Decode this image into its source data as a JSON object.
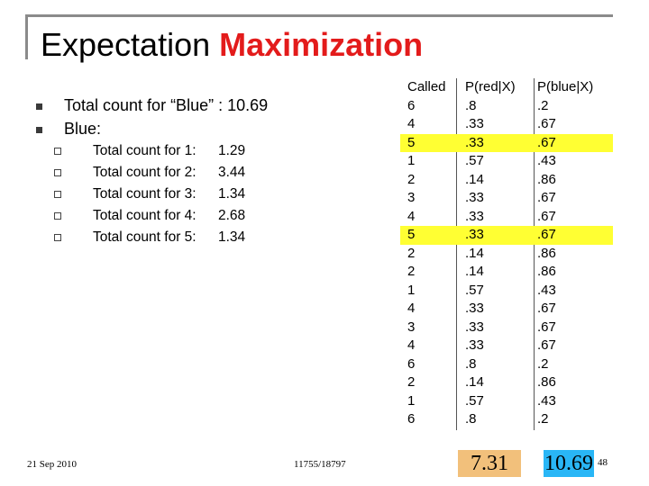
{
  "title": {
    "part1": "Expectation ",
    "part2": "Maximization"
  },
  "bullets": [
    {
      "text": "Total count for “Blue” : 10.69"
    },
    {
      "text": "Blue:"
    }
  ],
  "sub_items": [
    {
      "label": "Total count for 1:",
      "value": "1.29"
    },
    {
      "label": "Total count for 2:",
      "value": "3.44"
    },
    {
      "label": "Total count for 3:",
      "value": "1.34"
    },
    {
      "label": "Total count for 4:",
      "value": "2.68"
    },
    {
      "label": "Total count for 5:",
      "value": "1.34"
    }
  ],
  "table": {
    "headers": [
      "Called",
      "P(red|X)",
      "P(blue|X)"
    ],
    "rows": [
      {
        "called": "6",
        "pred": ".8",
        "pblue": ".2",
        "highlight": false
      },
      {
        "called": "4",
        "pred": ".33",
        "pblue": ".67",
        "highlight": false
      },
      {
        "called": "5",
        "pred": ".33",
        "pblue": ".67",
        "highlight": true
      },
      {
        "called": "1",
        "pred": ".57",
        "pblue": ".43",
        "highlight": false
      },
      {
        "called": "2",
        "pred": ".14",
        "pblue": ".86",
        "highlight": false
      },
      {
        "called": "3",
        "pred": ".33",
        "pblue": ".67",
        "highlight": false
      },
      {
        "called": "4",
        "pred": ".33",
        "pblue": ".67",
        "highlight": false
      },
      {
        "called": "5",
        "pred": ".33",
        "pblue": ".67",
        "highlight": true
      },
      {
        "called": "2",
        "pred": ".14",
        "pblue": ".86",
        "highlight": false
      },
      {
        "called": "2",
        "pred": ".14",
        "pblue": ".86",
        "highlight": false
      },
      {
        "called": "1",
        "pred": ".57",
        "pblue": ".43",
        "highlight": false
      },
      {
        "called": "4",
        "pred": ".33",
        "pblue": ".67",
        "highlight": false
      },
      {
        "called": "3",
        "pred": ".33",
        "pblue": ".67",
        "highlight": false
      },
      {
        "called": "4",
        "pred": ".33",
        "pblue": ".67",
        "highlight": false
      },
      {
        "called": "6",
        "pred": ".8",
        "pblue": ".2",
        "highlight": false
      },
      {
        "called": "2",
        "pred": ".14",
        "pblue": ".86",
        "highlight": false
      },
      {
        "called": "1",
        "pred": ".57",
        "pblue": ".43",
        "highlight": false
      },
      {
        "called": "6",
        "pred": ".8",
        "pblue": ".2",
        "highlight": false
      }
    ]
  },
  "sums": {
    "red": "7.31",
    "blue": "10.69"
  },
  "footer": {
    "date": "21 Sep 2010",
    "course": "11755/18797",
    "page": "48"
  },
  "colors": {
    "accent": "#e31b1b",
    "highlight": "#ffff33",
    "red_sum_bg": "#f2c07b",
    "blue_sum_bg": "#29b6f6"
  }
}
